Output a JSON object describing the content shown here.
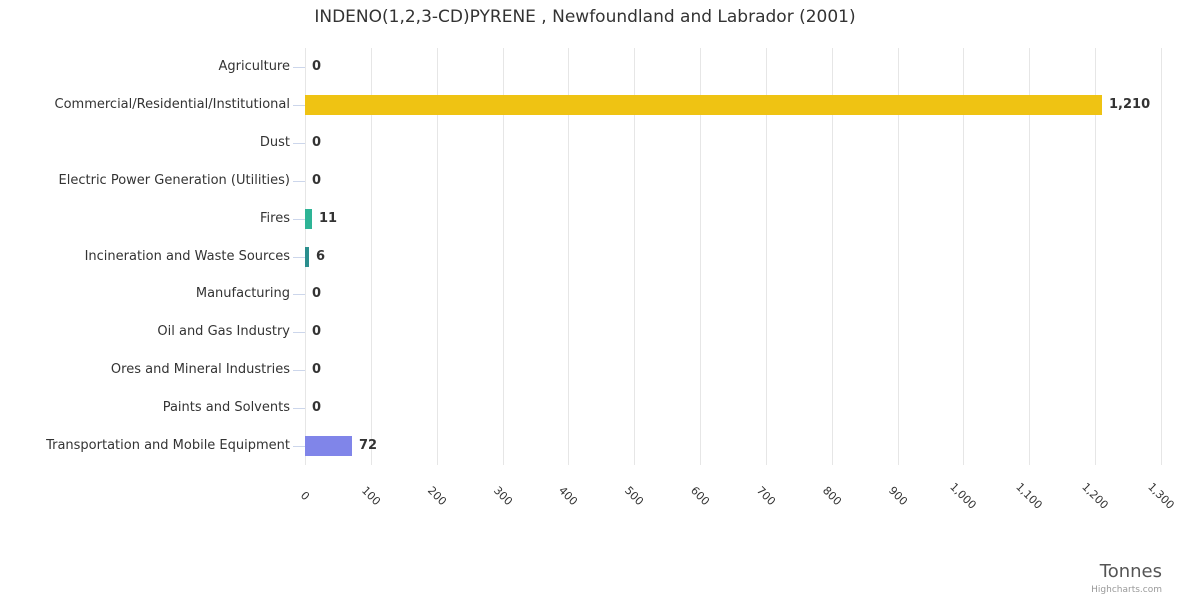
{
  "title": "INDENO(1,2,3-CD)PYRENE , Newfoundland and Labrador (2001)",
  "credits_label": "Highcharts.com",
  "axis": {
    "x_title": "Tonnes"
  },
  "colors": {
    "grid": "#e6e6e6",
    "tick": "#ccd6eb",
    "text": "#333333",
    "bar_gold": "#efc313",
    "bar_emerald": "#2eb496",
    "bar_teal": "#2b8f8e",
    "bar_periwinkle": "#8085e9"
  },
  "chart_data": {
    "type": "bar",
    "orientation": "horizontal",
    "title": "INDENO(1,2,3-CD)PYRENE , Newfoundland and Labrador (2001)",
    "xlabel": "Tonnes",
    "ylabel": "",
    "grid": true,
    "legend": false,
    "xlim": [
      0,
      1300
    ],
    "x_ticks": [
      0,
      100,
      200,
      300,
      400,
      500,
      600,
      700,
      800,
      900,
      1000,
      1100,
      1200,
      1300
    ],
    "x_tick_labels": [
      "0",
      "100",
      "200",
      "300",
      "400",
      "500",
      "600",
      "700",
      "800",
      "900",
      "1,000",
      "1,100",
      "1,200",
      "1,300"
    ],
    "x_tick_rotation_deg": 45,
    "categories": [
      "Agriculture",
      "Commercial/Residential/Institutional",
      "Dust",
      "Electric Power Generation (Utilities)",
      "Fires",
      "Incineration and Waste Sources",
      "Manufacturing",
      "Oil and Gas Industry",
      "Ores and Mineral Industries",
      "Paints and Solvents",
      "Transportation and Mobile Equipment"
    ],
    "values": [
      0,
      1210,
      0,
      0,
      11,
      6,
      0,
      0,
      0,
      0,
      72
    ],
    "value_labels": [
      "0",
      "1,210",
      "0",
      "0",
      "11",
      "6",
      "0",
      "0",
      "0",
      "0",
      "72"
    ],
    "bar_colors": [
      null,
      "#efc313",
      null,
      null,
      "#2eb496",
      "#2b8f8e",
      null,
      null,
      null,
      null,
      "#8085e9"
    ]
  }
}
